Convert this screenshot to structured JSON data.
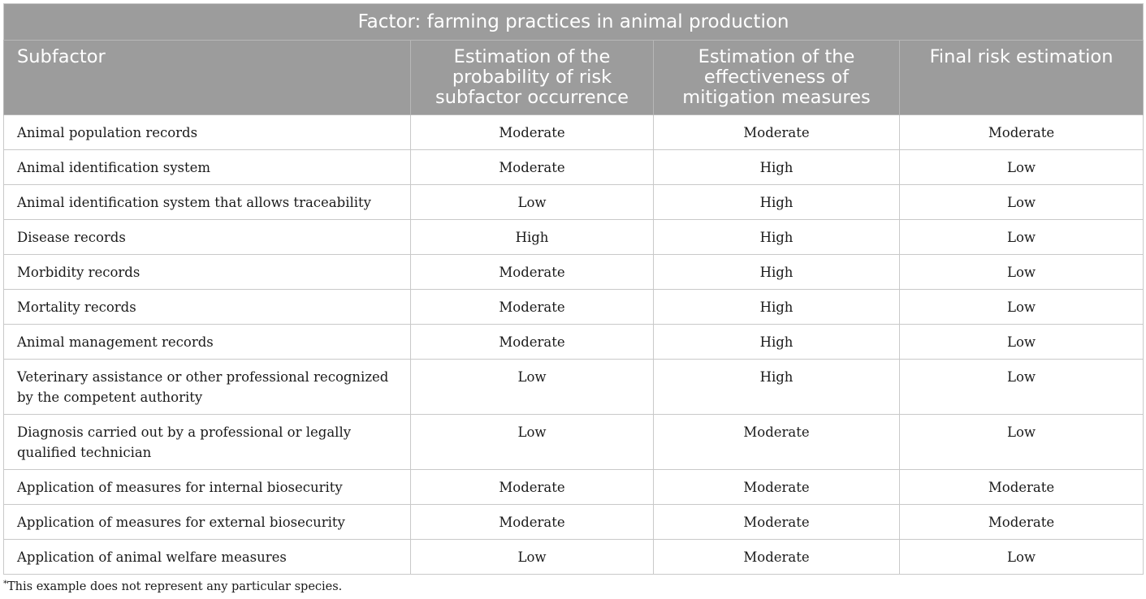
{
  "table": {
    "factor_title": "Factor: farming practices in animal production",
    "columns": [
      "Subfactor",
      "Estimation of the probability of risk subfactor occurrence",
      "Estimation of the effectiveness of mitigation measures",
      "Final risk estimation"
    ],
    "rows": [
      {
        "subfactor": "Animal population records",
        "probability": "Moderate",
        "effectiveness": "Moderate",
        "final": "Moderate"
      },
      {
        "subfactor": "Animal identification system",
        "probability": "Moderate",
        "effectiveness": "High",
        "final": "Low"
      },
      {
        "subfactor": "Animal identification system that allows traceability",
        "probability": "Low",
        "effectiveness": "High",
        "final": "Low"
      },
      {
        "subfactor": "Disease records",
        "probability": "High",
        "effectiveness": "High",
        "final": "Low"
      },
      {
        "subfactor": "Morbidity records",
        "probability": "Moderate",
        "effectiveness": "High",
        "final": "Low"
      },
      {
        "subfactor": "Mortality records",
        "probability": "Moderate",
        "effectiveness": "High",
        "final": "Low"
      },
      {
        "subfactor": "Animal management records",
        "probability": "Moderate",
        "effectiveness": "High",
        "final": "Low"
      },
      {
        "subfactor": "Veterinary assistance or other professional recognized by the competent authority",
        "probability": "Low",
        "effectiveness": "High",
        "final": "Low"
      },
      {
        "subfactor": "Diagnosis carried out by a professional or legally qualified technician",
        "probability": "Low",
        "effectiveness": "Moderate",
        "final": "Low"
      },
      {
        "subfactor": "Application of measures for internal biosecurity",
        "probability": "Moderate",
        "effectiveness": "Moderate",
        "final": "Moderate"
      },
      {
        "subfactor": "Application of measures for external biosecurity",
        "probability": "Moderate",
        "effectiveness": "Moderate",
        "final": "Moderate"
      },
      {
        "subfactor": "Application of animal welfare measures",
        "probability": "Low",
        "effectiveness": "Moderate",
        "final": "Low"
      }
    ]
  },
  "footnote": {
    "marker": "*",
    "text": "This example does not represent any particular species."
  },
  "colors": {
    "header_background": "#9c9c9c",
    "header_text": "#ffffff",
    "grid_line": "#c9c9c9"
  }
}
